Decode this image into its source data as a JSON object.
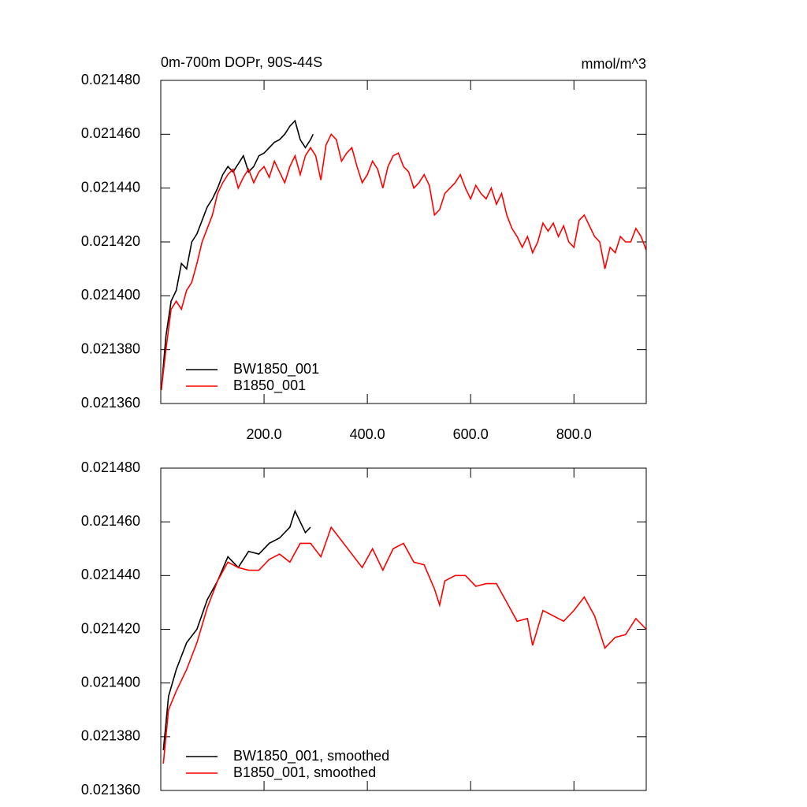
{
  "chart_data": [
    {
      "type": "line",
      "title": "0m-700m DOPr, 90S-44S",
      "units": "mmol/m^3",
      "xlim": [
        0,
        940
      ],
      "ylim": [
        0.02136,
        0.02148
      ],
      "xticks": [
        {
          "value": 200,
          "label": "200.0"
        },
        {
          "value": 400,
          "label": "400.0"
        },
        {
          "value": 600,
          "label": "600.0"
        },
        {
          "value": 800,
          "label": "800.0"
        }
      ],
      "yticks": [
        {
          "value": 0.02136,
          "label": "0.021360"
        },
        {
          "value": 0.02138,
          "label": "0.021380"
        },
        {
          "value": 0.0214,
          "label": "0.021400"
        },
        {
          "value": 0.02142,
          "label": "0.021420"
        },
        {
          "value": 0.02144,
          "label": "0.021440"
        },
        {
          "value": 0.02146,
          "label": "0.021460"
        },
        {
          "value": 0.02148,
          "label": "0.021480"
        }
      ],
      "legend": "bottom-left",
      "series": [
        {
          "name": "BW1850_001",
          "color": "#000000",
          "x": [
            1,
            10,
            20,
            30,
            40,
            50,
            60,
            70,
            80,
            90,
            100,
            110,
            120,
            130,
            140,
            150,
            160,
            170,
            180,
            190,
            200,
            210,
            220,
            230,
            240,
            250,
            260,
            270,
            280,
            290,
            295
          ],
          "values": [
            0.021365,
            0.021385,
            0.021398,
            0.021402,
            0.021412,
            0.02141,
            0.02142,
            0.021423,
            0.021428,
            0.021433,
            0.021436,
            0.02144,
            0.021445,
            0.021448,
            0.021446,
            0.021449,
            0.021452,
            0.021446,
            0.021448,
            0.021452,
            0.021453,
            0.021455,
            0.021457,
            0.021458,
            0.02146,
            0.021463,
            0.021465,
            0.021458,
            0.021455,
            0.021458,
            0.02146
          ]
        },
        {
          "name": "B1850_001",
          "color": "#ff0000",
          "x": [
            1,
            10,
            20,
            30,
            40,
            50,
            60,
            70,
            80,
            90,
            100,
            110,
            120,
            130,
            140,
            150,
            160,
            170,
            180,
            190,
            200,
            210,
            220,
            230,
            240,
            250,
            260,
            270,
            280,
            290,
            300,
            310,
            320,
            330,
            340,
            350,
            360,
            370,
            380,
            390,
            400,
            410,
            420,
            430,
            440,
            450,
            460,
            470,
            480,
            490,
            500,
            510,
            520,
            530,
            540,
            550,
            560,
            570,
            580,
            590,
            600,
            610,
            620,
            630,
            640,
            650,
            660,
            670,
            680,
            690,
            700,
            710,
            720,
            730,
            740,
            750,
            760,
            770,
            780,
            790,
            800,
            810,
            820,
            830,
            840,
            850,
            860,
            870,
            880,
            890,
            900,
            910,
            920,
            930,
            940
          ],
          "values": [
            0.021365,
            0.02138,
            0.021395,
            0.021398,
            0.021395,
            0.021402,
            0.021405,
            0.021412,
            0.02142,
            0.021425,
            0.02143,
            0.021438,
            0.021442,
            0.021445,
            0.021447,
            0.02144,
            0.021444,
            0.021447,
            0.021442,
            0.021446,
            0.021448,
            0.021444,
            0.02145,
            0.021446,
            0.021442,
            0.021448,
            0.021452,
            0.021445,
            0.021452,
            0.021455,
            0.021452,
            0.021443,
            0.021456,
            0.02146,
            0.021458,
            0.02145,
            0.021453,
            0.021455,
            0.021448,
            0.021442,
            0.021445,
            0.02145,
            0.021447,
            0.02144,
            0.021448,
            0.021452,
            0.021453,
            0.021448,
            0.021446,
            0.02144,
            0.021442,
            0.021445,
            0.021441,
            0.02143,
            0.021432,
            0.021438,
            0.02144,
            0.021442,
            0.021445,
            0.02144,
            0.021436,
            0.021441,
            0.021438,
            0.021436,
            0.02144,
            0.021434,
            0.021438,
            0.02143,
            0.021425,
            0.021422,
            0.021418,
            0.021422,
            0.021416,
            0.02142,
            0.021427,
            0.021424,
            0.021427,
            0.021422,
            0.021426,
            0.02142,
            0.021418,
            0.021428,
            0.02143,
            0.021426,
            0.021422,
            0.02142,
            0.02141,
            0.021418,
            0.021416,
            0.021422,
            0.02142,
            0.02142,
            0.021425,
            0.021422,
            0.021417
          ]
        }
      ]
    },
    {
      "type": "line",
      "xlim": [
        0,
        940
      ],
      "ylim": [
        0.02136,
        0.02148
      ],
      "xticks": [
        200,
        400,
        600,
        800
      ],
      "show_xtick_labels": false,
      "yticks": [
        {
          "value": 0.02136,
          "label": "0.021360"
        },
        {
          "value": 0.02138,
          "label": "0.021380"
        },
        {
          "value": 0.0214,
          "label": "0.021400"
        },
        {
          "value": 0.02142,
          "label": "0.021420"
        },
        {
          "value": 0.02144,
          "label": "0.021440"
        },
        {
          "value": 0.02146,
          "label": "0.021460"
        },
        {
          "value": 0.02148,
          "label": "0.021480"
        }
      ],
      "legend": "bottom-left",
      "series": [
        {
          "name": "BW1850_001, smoothed",
          "color": "#000000",
          "x": [
            5,
            15,
            30,
            50,
            70,
            90,
            110,
            130,
            150,
            170,
            190,
            210,
            230,
            250,
            260,
            270,
            280,
            290
          ],
          "values": [
            0.021375,
            0.021395,
            0.021405,
            0.021415,
            0.02142,
            0.021431,
            0.021438,
            0.021447,
            0.021443,
            0.021449,
            0.021448,
            0.021452,
            0.021454,
            0.021458,
            0.021464,
            0.02146,
            0.021456,
            0.021458
          ]
        },
        {
          "name": "B1850_001, smoothed",
          "color": "#ff0000",
          "x": [
            5,
            15,
            30,
            50,
            70,
            90,
            110,
            130,
            150,
            170,
            190,
            210,
            230,
            250,
            270,
            290,
            310,
            330,
            350,
            370,
            390,
            410,
            430,
            450,
            470,
            490,
            510,
            530,
            540,
            550,
            570,
            590,
            610,
            630,
            650,
            670,
            690,
            710,
            720,
            740,
            760,
            780,
            800,
            820,
            840,
            860,
            880,
            900,
            920,
            940
          ],
          "values": [
            0.02137,
            0.02139,
            0.021397,
            0.021405,
            0.021415,
            0.021428,
            0.021438,
            0.021445,
            0.021443,
            0.021442,
            0.021442,
            0.021446,
            0.021448,
            0.021445,
            0.021452,
            0.021452,
            0.021447,
            0.021458,
            0.021453,
            0.021448,
            0.021443,
            0.02145,
            0.021442,
            0.02145,
            0.021452,
            0.021445,
            0.021444,
            0.021435,
            0.021429,
            0.021438,
            0.02144,
            0.02144,
            0.021436,
            0.021437,
            0.021437,
            0.02143,
            0.021423,
            0.021424,
            0.021414,
            0.021427,
            0.021425,
            0.021423,
            0.021427,
            0.021432,
            0.021425,
            0.021413,
            0.021417,
            0.021418,
            0.021424,
            0.02142
          ]
        }
      ]
    }
  ]
}
